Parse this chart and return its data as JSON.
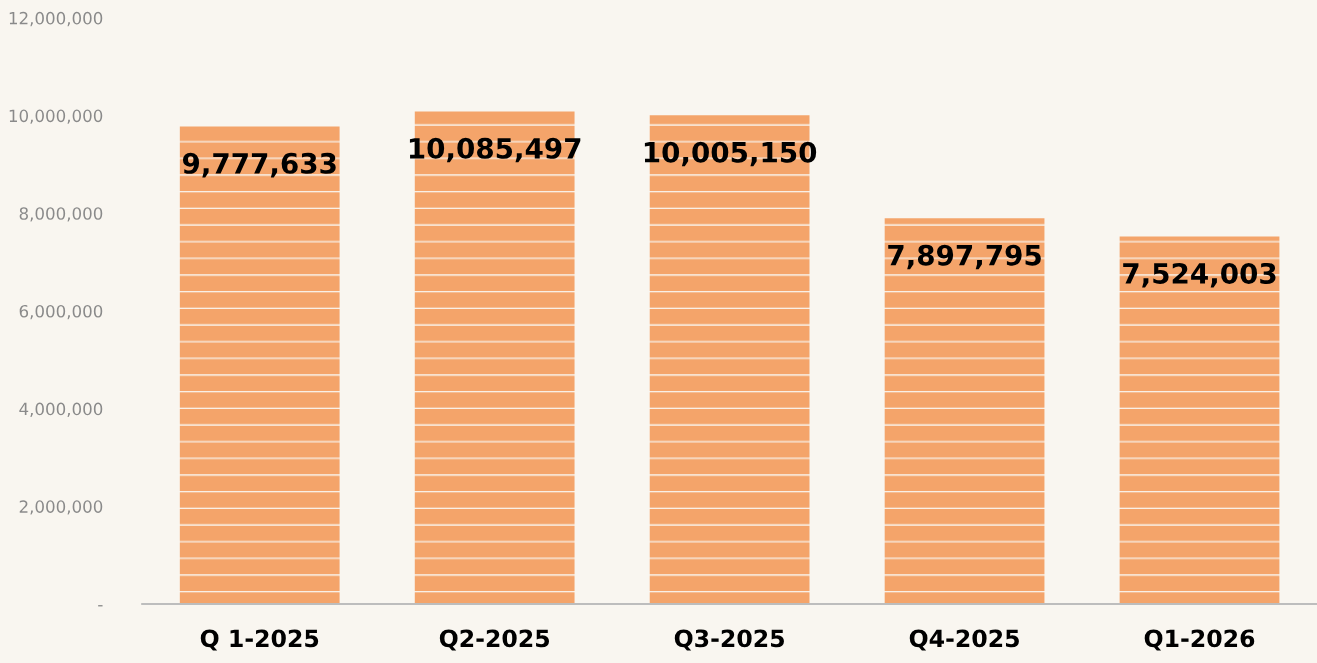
{
  "chart_data": {
    "type": "bar",
    "categories": [
      "Q 1-2025",
      "Q2-2025",
      "Q3-2025",
      "Q4-2025",
      "Q1-2026"
    ],
    "values": [
      9777633,
      10085497,
      10005150,
      7897795,
      7524003
    ],
    "value_labels": [
      "9,777,633",
      "10,085,497",
      "10,005,150",
      "7,897,795",
      "7,524,003"
    ],
    "color": "#f4a46a",
    "ylim": [
      0,
      12000000
    ],
    "yticks": [
      {
        "value": 0,
        "label": "-"
      },
      {
        "value": 2000000,
        "label": "2,000,000"
      },
      {
        "value": 4000000,
        "label": "4,000,000"
      },
      {
        "value": 6000000,
        "label": "6,000,000"
      },
      {
        "value": 8000000,
        "label": "8,000,000"
      },
      {
        "value": 10000000,
        "label": "10,000,000"
      },
      {
        "value": 12000000,
        "label": "12,000,000"
      }
    ],
    "grid": false,
    "legend": false
  }
}
